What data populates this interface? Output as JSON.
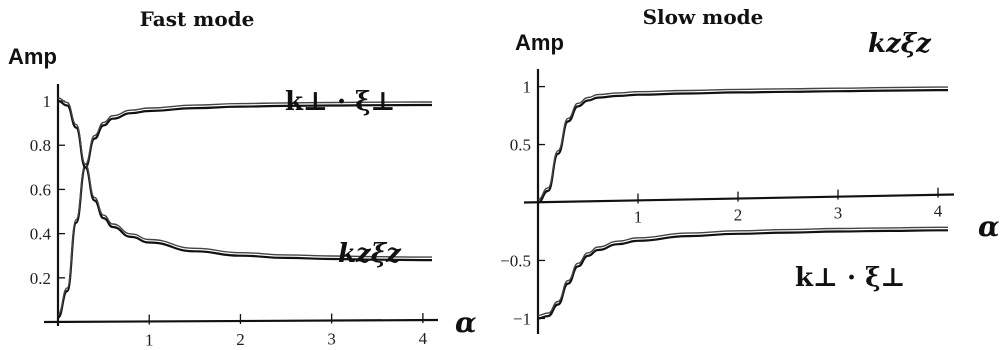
{
  "chart_data": [
    {
      "type": "line",
      "title": "Fast mode",
      "ylabel": "Amp",
      "xlabel": "α",
      "xlim": [
        0,
        4.1
      ],
      "ylim": [
        0,
        1.05
      ],
      "xticks": [
        "1",
        "2",
        "3",
        "4"
      ],
      "yticks": [
        "0.2",
        "0.4",
        "0.6",
        "0.8",
        "1"
      ],
      "series": [
        {
          "name": "k⊥ · ξ⊥",
          "x": [
            0,
            0.1,
            0.2,
            0.3,
            0.4,
            0.5,
            0.6,
            0.8,
            1.0,
            1.5,
            2.0,
            2.5,
            3.0,
            3.5,
            4.0,
            4.1
          ],
          "values": [
            0.02,
            0.14,
            0.45,
            0.7,
            0.83,
            0.89,
            0.92,
            0.945,
            0.955,
            0.968,
            0.975,
            0.978,
            0.98,
            0.981,
            0.982,
            0.982
          ]
        },
        {
          "name": "kzξz",
          "x": [
            0,
            0.1,
            0.2,
            0.3,
            0.4,
            0.5,
            0.6,
            0.8,
            1.0,
            1.5,
            2.0,
            2.5,
            3.0,
            3.5,
            4.0,
            4.1
          ],
          "values": [
            1.0,
            0.98,
            0.88,
            0.7,
            0.55,
            0.47,
            0.43,
            0.385,
            0.36,
            0.32,
            0.3,
            0.29,
            0.285,
            0.282,
            0.28,
            0.28
          ]
        }
      ]
    },
    {
      "type": "line",
      "title": "Slow mode",
      "ylabel": "Amp",
      "xlabel": "α",
      "xlim": [
        0,
        4.1
      ],
      "ylim": [
        -1.1,
        1.1
      ],
      "xticks": [
        "1",
        "2",
        "3",
        "4"
      ],
      "yticks": [
        "−1",
        "−0.5",
        "0.5",
        "1"
      ],
      "series": [
        {
          "name": "kzξz",
          "x": [
            0,
            0.1,
            0.2,
            0.3,
            0.4,
            0.5,
            0.6,
            0.8,
            1.0,
            1.5,
            2.0,
            2.5,
            3.0,
            3.5,
            4.0,
            4.1
          ],
          "values": [
            0.0,
            0.1,
            0.42,
            0.7,
            0.83,
            0.88,
            0.905,
            0.92,
            0.93,
            0.94,
            0.95,
            0.955,
            0.96,
            0.965,
            0.97,
            0.97
          ]
        },
        {
          "name": "k⊥ · ξ⊥",
          "x": [
            0,
            0.1,
            0.2,
            0.3,
            0.4,
            0.5,
            0.6,
            0.8,
            1.0,
            1.5,
            2.0,
            2.5,
            3.0,
            3.5,
            4.0,
            4.1
          ],
          "values": [
            -1.0,
            -0.98,
            -0.88,
            -0.7,
            -0.55,
            -0.46,
            -0.41,
            -0.36,
            -0.33,
            -0.29,
            -0.27,
            -0.26,
            -0.25,
            -0.245,
            -0.24,
            -0.24
          ]
        }
      ]
    }
  ]
}
